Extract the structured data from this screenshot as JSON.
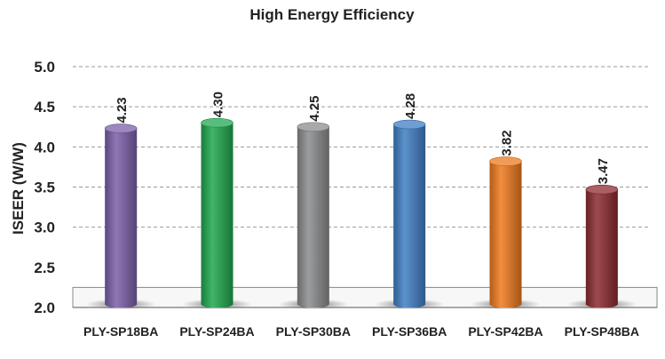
{
  "chart_data": {
    "type": "bar",
    "title": "High Energy Efficiency",
    "ylabel": "ISEER (W/W)",
    "xlabel": "",
    "ylim": [
      2.0,
      5.0
    ],
    "yticks": [
      "2.0",
      "2.5",
      "3.0",
      "3.5",
      "4.0",
      "4.5",
      "5.0"
    ],
    "ytick_values": [
      2.0,
      2.5,
      3.0,
      3.5,
      4.0,
      4.5,
      5.0
    ],
    "grid": true,
    "categories": [
      "PLY-SP18BA",
      "PLY-SP24BA",
      "PLY-SP30BA",
      "PLY-SP36BA",
      "PLY-SP42BA",
      "PLY-SP48BA"
    ],
    "values": [
      4.23,
      4.3,
      4.25,
      4.28,
      3.82,
      3.47
    ],
    "data_labels": [
      "4.23",
      "4.30",
      "4.25",
      "4.28",
      "3.82",
      "3.47"
    ],
    "colors": [
      "#7b5fa8",
      "#1fa84f",
      "#8a8c8e",
      "#3f7fc3",
      "#ee7a1d",
      "#8c2a2f"
    ]
  }
}
